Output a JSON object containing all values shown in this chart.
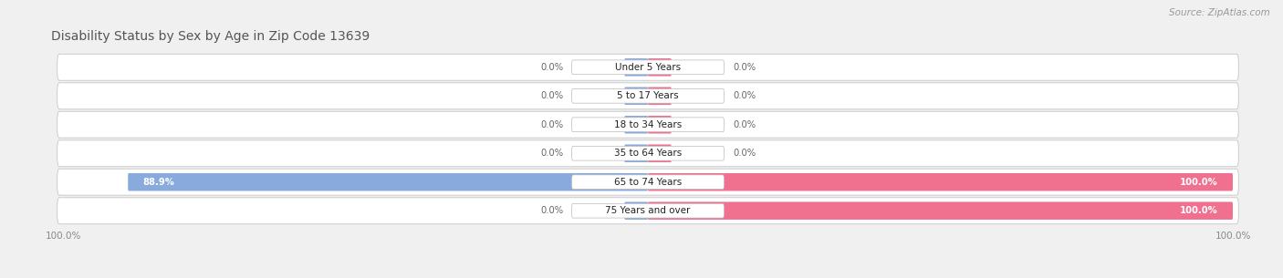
{
  "title": "Disability Status by Sex by Age in Zip Code 13639",
  "source": "Source: ZipAtlas.com",
  "categories": [
    "Under 5 Years",
    "5 to 17 Years",
    "18 to 34 Years",
    "35 to 64 Years",
    "65 to 74 Years",
    "75 Years and over"
  ],
  "male_values": [
    0.0,
    0.0,
    0.0,
    0.0,
    88.9,
    0.0
  ],
  "female_values": [
    0.0,
    0.0,
    0.0,
    0.0,
    100.0,
    100.0
  ],
  "male_color": "#88aadd",
  "female_color": "#f07090",
  "figsize": [
    14.06,
    3.05
  ],
  "dpi": 100
}
